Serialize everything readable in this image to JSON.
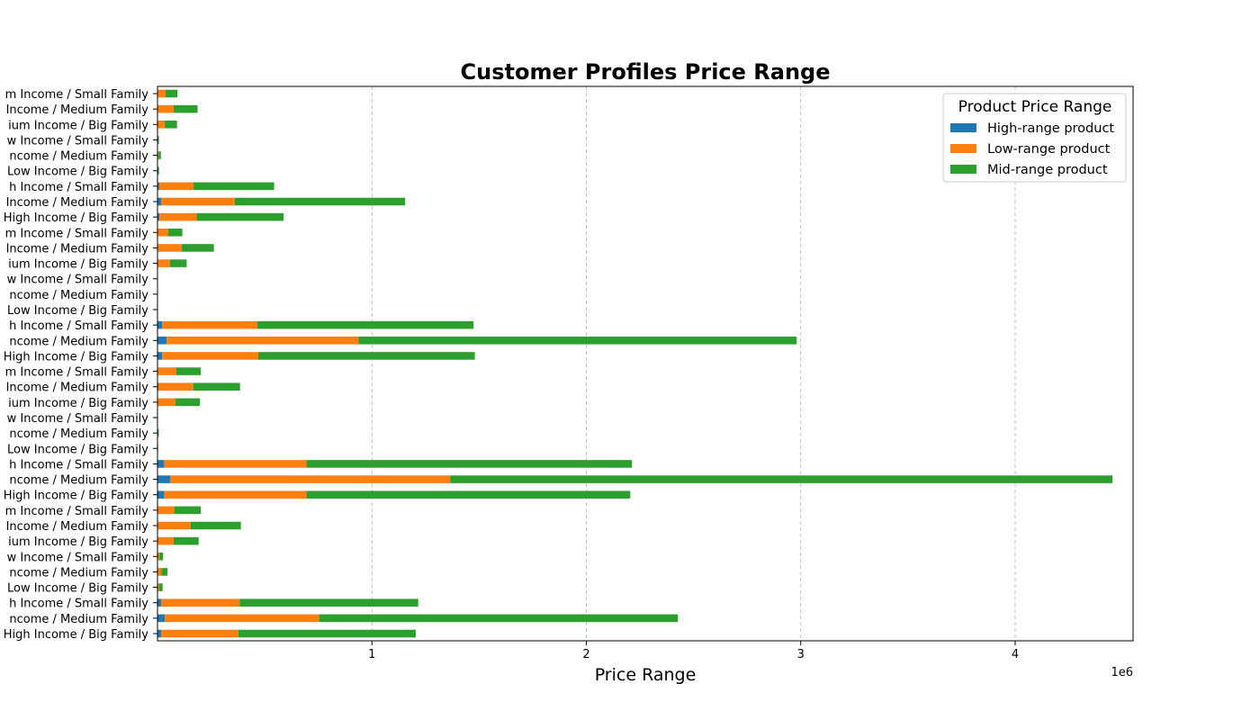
{
  "chart_data": {
    "type": "bar",
    "orientation": "horizontal",
    "stacked": true,
    "title": "Customer Profiles Price Range",
    "xlabel": "Price Range",
    "ylabel": "",
    "x_scale_label": "1e6",
    "xlim": [
      0,
      4.55
    ],
    "xticks": [
      1,
      2,
      3,
      4
    ],
    "grid": "x-dashed",
    "legend_position": "top-right",
    "legend_title": "Product Price Range",
    "categories": [
      "m Income / Small Family",
      "Income / Medium Family",
      "ium Income / Big Family",
      "w Income / Small Family",
      "ncome / Medium Family",
      "Low Income / Big Family",
      "h Income / Small Family",
      "Income / Medium Family",
      "High Income / Big Family",
      "m Income / Small Family",
      "Income / Medium Family",
      "ium Income / Big Family",
      "w Income / Small Family",
      "ncome / Medium Family",
      "Low Income / Big Family",
      "h Income / Small Family",
      "ncome / Medium Family",
      "High Income / Big Family",
      "m Income / Small Family",
      "Income / Medium Family",
      "ium Income / Big Family",
      "w Income / Small Family",
      "ncome / Medium Family",
      "Low Income / Big Family",
      "h Income / Small Family",
      "ncome / Medium Family",
      "High Income / Big Family",
      "m Income / Small Family",
      "Income / Medium Family",
      "ium Income / Big Family",
      "w Income / Small Family",
      "ncome / Medium Family",
      "Low Income / Big Family",
      "h Income / Small Family",
      "ncome / Medium Family",
      "High Income / Big Family"
    ],
    "series": [
      {
        "name": "High-range product",
        "color": "#1f77b4",
        "values": [
          0.002,
          0.002,
          0.002,
          0.0,
          0.0,
          0.0,
          0.008,
          0.017,
          0.009,
          0.002,
          0.003,
          0.002,
          0.0,
          0.0,
          0.0,
          0.022,
          0.043,
          0.022,
          0.003,
          0.004,
          0.002,
          0.0,
          0.0,
          0.0,
          0.031,
          0.06,
          0.031,
          0.002,
          0.003,
          0.002,
          0.0,
          0.001,
          0.0,
          0.017,
          0.034,
          0.017
        ]
      },
      {
        "name": "Low-range product",
        "color": "#ff7f0e",
        "values": [
          0.036,
          0.073,
          0.032,
          0.002,
          0.005,
          0.002,
          0.16,
          0.343,
          0.174,
          0.048,
          0.11,
          0.056,
          0.0,
          0.0,
          0.0,
          0.443,
          0.895,
          0.448,
          0.085,
          0.163,
          0.082,
          0.0,
          0.002,
          0.001,
          0.664,
          1.305,
          0.664,
          0.076,
          0.151,
          0.073,
          0.009,
          0.018,
          0.008,
          0.366,
          0.72,
          0.36
        ]
      },
      {
        "name": "Mid-range product",
        "color": "#2ca02c",
        "values": [
          0.055,
          0.112,
          0.057,
          0.005,
          0.011,
          0.005,
          0.376,
          0.795,
          0.405,
          0.066,
          0.15,
          0.078,
          0.0,
          0.0,
          0.0,
          1.009,
          2.043,
          1.01,
          0.114,
          0.218,
          0.114,
          0.001,
          0.004,
          0.002,
          1.518,
          3.089,
          1.51,
          0.124,
          0.235,
          0.117,
          0.017,
          0.028,
          0.016,
          0.833,
          1.673,
          0.828
        ]
      }
    ]
  }
}
